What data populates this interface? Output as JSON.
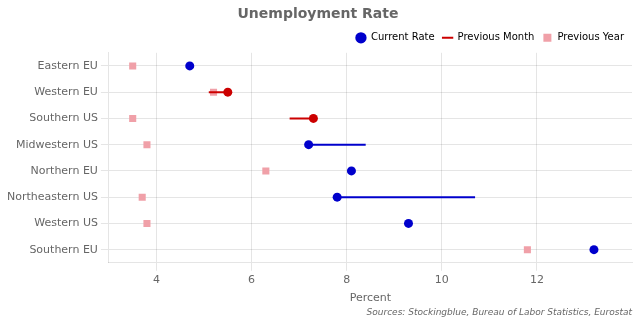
{
  "chart_data": {
    "type": "dot",
    "title": "Unemployment Rate",
    "xlabel": "Percent",
    "annotations": [
      "Sources: Stockingblue, Bureau of Labor Statistics, Eurostat"
    ],
    "categories": [
      "Eastern EU",
      "Western EU",
      "Southern US",
      "Midwestern US",
      "Northern EU",
      "Northeastern US",
      "Western US",
      "Southern EU"
    ],
    "series": [
      {
        "name": "Current Rate",
        "type": "scatter",
        "marker": "circle",
        "values": [
          4.7,
          5.5,
          7.3,
          7.2,
          8.1,
          7.8,
          9.3,
          13.2
        ],
        "colors": [
          "#0000cc",
          "#cc0000",
          "#cc0000",
          "#0000cc",
          "#0000cc",
          "#0000cc",
          "#0000cc",
          "#0000cc"
        ]
      },
      {
        "name": "Previous Month",
        "type": "line",
        "values": [
          null,
          5.1,
          6.8,
          8.4,
          null,
          10.7,
          null,
          null
        ],
        "colors": [
          "#0000cc",
          "#cc0000",
          "#cc0000",
          "#0000cc",
          "#0000cc",
          "#0000cc",
          "#0000cc",
          "#0000cc"
        ]
      },
      {
        "name": "Previous Year",
        "type": "scatter",
        "marker": "square",
        "color": "#f0a0a8",
        "values": [
          3.5,
          5.2,
          3.5,
          3.8,
          6.3,
          3.7,
          3.8,
          11.8
        ]
      }
    ],
    "xlim": [
      3.0,
      14.0
    ],
    "xticks": [
      4,
      6,
      8,
      10,
      12
    ],
    "grid": true,
    "legend": "upper right"
  }
}
